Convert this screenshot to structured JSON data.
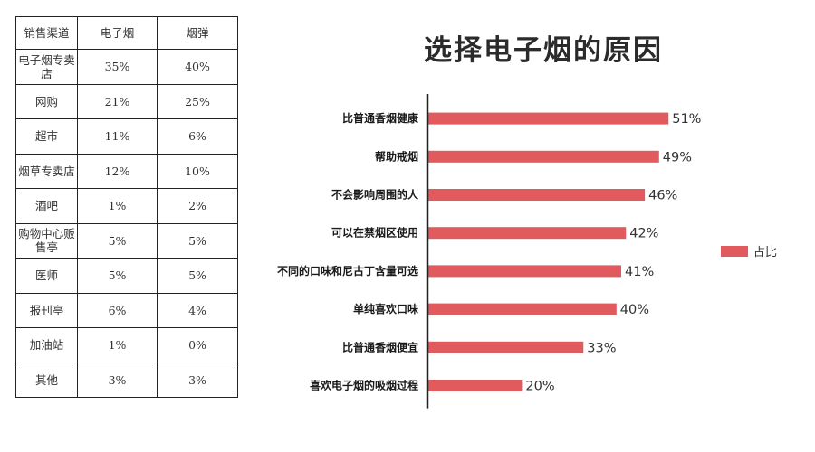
{
  "table": {
    "headers": [
      "销售渠道",
      "电子烟",
      "烟弹"
    ],
    "rows": [
      {
        "channel": "电子烟专卖店",
        "ecig": "35%",
        "pod": "40%"
      },
      {
        "channel": "网购",
        "ecig": "21%",
        "pod": "25%"
      },
      {
        "channel": "超市",
        "ecig": "11%",
        "pod": "6%"
      },
      {
        "channel": "烟草专卖店",
        "ecig": "12%",
        "pod": "10%"
      },
      {
        "channel": "酒吧",
        "ecig": "1%",
        "pod": "2%"
      },
      {
        "channel": "购物中心贩售亭",
        "ecig": "5%",
        "pod": "5%"
      },
      {
        "channel": "医师",
        "ecig": "5%",
        "pod": "5%"
      },
      {
        "channel": "报刊亭",
        "ecig": "6%",
        "pod": "4%"
      },
      {
        "channel": "加油站",
        "ecig": "1%",
        "pod": "0%"
      },
      {
        "channel": "其他",
        "ecig": "3%",
        "pod": "3%"
      }
    ]
  },
  "chart_data": {
    "type": "bar",
    "orientation": "horizontal",
    "title": "选择电子烟的原因",
    "categories": [
      "比普通香烟健康",
      "帮助戒烟",
      "不会影响周围的人",
      "可以在禁烟区使用",
      "不同的口味和尼古丁含量可选",
      "单纯喜欢口味",
      "比普通香烟便宜",
      "喜欢电子烟的吸烟过程"
    ],
    "series": [
      {
        "name": "占比",
        "values": [
          51,
          49,
          46,
          42,
          41,
          40,
          33,
          20
        ],
        "labels": [
          "51%",
          "49%",
          "46%",
          "42%",
          "41%",
          "40%",
          "33%",
          "20%"
        ]
      }
    ],
    "xlim": [
      0,
      100
    ],
    "grid": false,
    "legend": "right",
    "bar_color": "#e05a5e"
  }
}
